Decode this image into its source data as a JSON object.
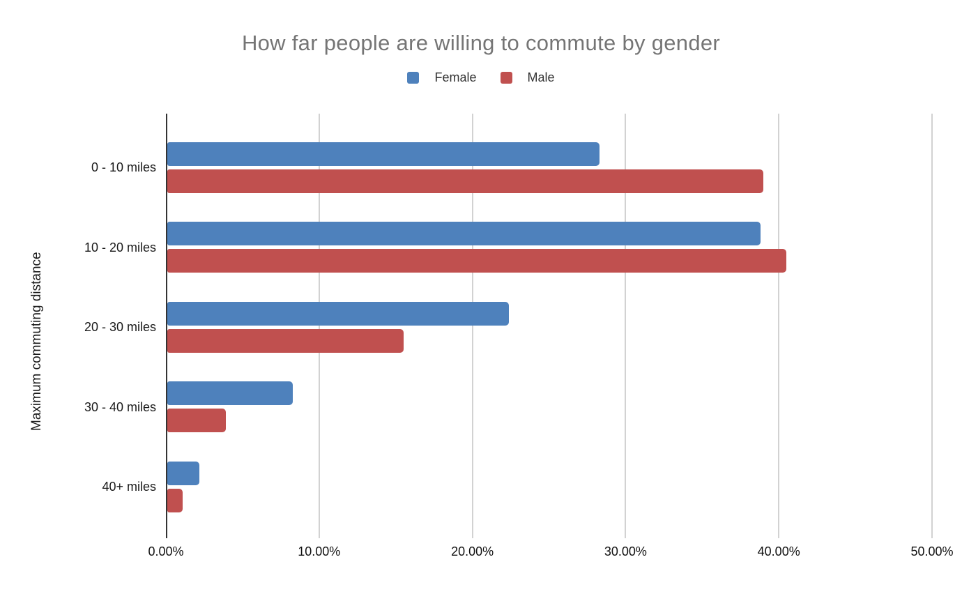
{
  "chart": {
    "title": "How far people are willing to commute by gender",
    "title_color": "#757575",
    "y_axis_title": "Maximum commuting distance",
    "legend": [
      {
        "label": "Female",
        "color": "#4e81bc"
      },
      {
        "label": "Male",
        "color": "#c0504f"
      }
    ],
    "gridline_color": "#d2d2d2",
    "axis_line_color": "#333333",
    "label_color": "#1a1a1a"
  },
  "chart_data": {
    "type": "bar",
    "orientation": "horizontal",
    "title": "How far people are willing to commute by gender",
    "categories": [
      "0 - 10 miles",
      "10 - 20 miles",
      "20 - 30 miles",
      "30 - 40 miles",
      "40+ miles"
    ],
    "series": [
      {
        "name": "Female",
        "color": "#4e81bc",
        "values": [
          28.3,
          38.8,
          22.4,
          8.3,
          2.2
        ]
      },
      {
        "name": "Male",
        "color": "#c0504f",
        "values": [
          39.0,
          40.5,
          15.5,
          3.9,
          1.1
        ]
      }
    ],
    "xlabel": "",
    "ylabel": "Maximum commuting distance",
    "xlim": [
      0,
      50
    ],
    "x_ticks": [
      0,
      10,
      20,
      30,
      40,
      50
    ],
    "x_tick_labels": [
      "0.00%",
      "10.00%",
      "20.00%",
      "30.00%",
      "40.00%",
      "50.00%"
    ],
    "grid": true,
    "legend_position": "top"
  }
}
